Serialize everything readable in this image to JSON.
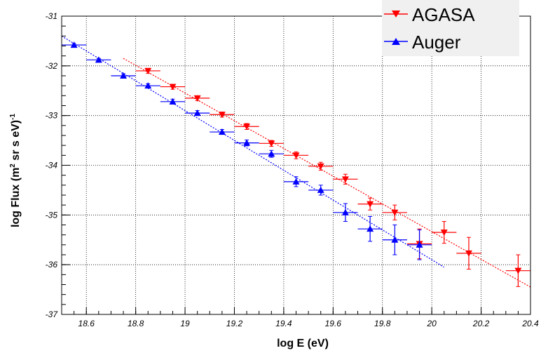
{
  "chart_data": {
    "type": "scatter",
    "xlabel": "log E (eV)",
    "ylabel": "log Flux (m² sr s eV)⁻¹",
    "ylabel_parts": {
      "pre": "log Flux (m",
      "sup1": "2",
      "mid": " sr s eV)",
      "sup2": "-1"
    },
    "xlim": [
      18.5,
      20.4
    ],
    "ylim": [
      -37,
      -31
    ],
    "x_ticks": [
      18.6,
      18.8,
      19,
      19.2,
      19.4,
      19.6,
      19.8,
      20,
      20.2,
      20.4
    ],
    "y_ticks": [
      -37,
      -36,
      -35,
      -34,
      -33,
      -32,
      -31
    ],
    "grid": true,
    "legend_position": "top-right",
    "series": [
      {
        "name": "AGASA",
        "color": "#ff0000",
        "marker": "triangle-down",
        "x": [
          18.85,
          18.95,
          19.05,
          19.15,
          19.25,
          19.35,
          19.45,
          19.55,
          19.65,
          19.75,
          19.85,
          19.95,
          20.05,
          20.15,
          20.35
        ],
        "y": [
          -32.1,
          -32.42,
          -32.65,
          -32.98,
          -33.22,
          -33.56,
          -33.8,
          -34.02,
          -34.28,
          -34.78,
          -34.95,
          -35.58,
          -35.35,
          -35.77,
          -36.12
        ],
        "y_err": [
          0.05,
          0.05,
          0.05,
          0.05,
          0.06,
          0.06,
          0.07,
          0.08,
          0.1,
          0.12,
          0.15,
          0.3,
          0.22,
          0.32,
          0.32
        ],
        "x_err": 0.05,
        "fit": {
          "x": [
            18.75,
            20.4
          ],
          "y": [
            -31.85,
            -36.45
          ]
        }
      },
      {
        "name": "Auger",
        "color": "#0000ff",
        "marker": "triangle-up",
        "x": [
          18.55,
          18.65,
          18.75,
          18.85,
          18.95,
          19.05,
          19.15,
          19.25,
          19.35,
          19.45,
          19.55,
          19.65,
          19.75,
          19.85,
          19.95
        ],
        "y": [
          -31.58,
          -31.88,
          -32.2,
          -32.4,
          -32.72,
          -32.95,
          -33.33,
          -33.55,
          -33.77,
          -34.33,
          -34.5,
          -34.95,
          -35.28,
          -35.5,
          -35.6
        ],
        "y_err": [
          0.03,
          0.03,
          0.04,
          0.04,
          0.05,
          0.05,
          0.05,
          0.06,
          0.07,
          0.1,
          0.1,
          0.18,
          0.25,
          0.3,
          0.3
        ],
        "x_err": 0.05,
        "fit": {
          "x": [
            18.5,
            20.05
          ],
          "y": [
            -31.4,
            -36.05
          ]
        }
      }
    ]
  }
}
